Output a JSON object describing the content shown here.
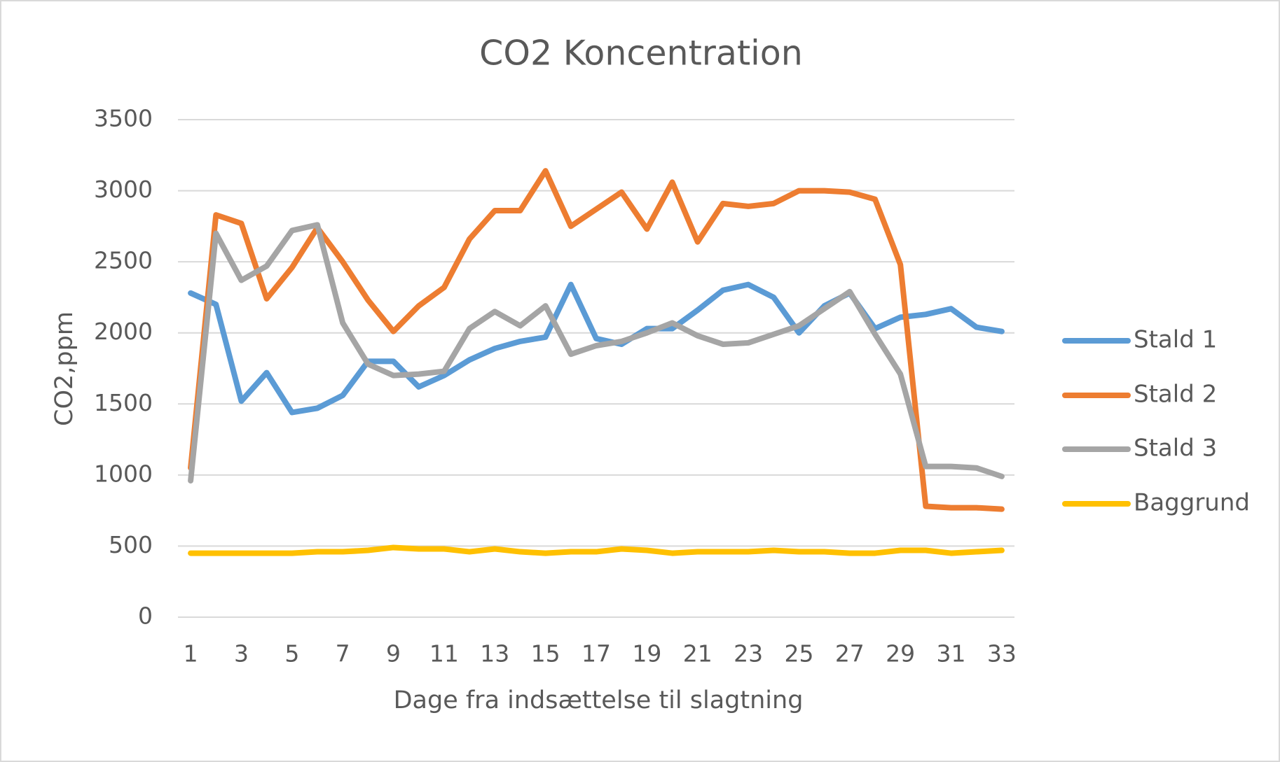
{
  "chart_data": {
    "type": "line",
    "title": "CO2 Koncentration",
    "x_label": "Dage fra indsættelse til slagtning",
    "y_label": "CO2,ppm",
    "categories": [
      1,
      null,
      3,
      null,
      5,
      null,
      7,
      null,
      9,
      null,
      11,
      null,
      13,
      null,
      15,
      null,
      17,
      null,
      19,
      null,
      21,
      null,
      23,
      null,
      25,
      null,
      27,
      null,
      29,
      null,
      31,
      null,
      33
    ],
    "series": [
      {
        "name": "Stald 1",
        "color": "#5b9bd5",
        "values": [
          2280,
          2200,
          1520,
          1720,
          1440,
          1470,
          1560,
          1800,
          1800,
          1620,
          1700,
          1810,
          1890,
          1940,
          1970,
          2340,
          1960,
          1920,
          2030,
          2030,
          2160,
          2300,
          2340,
          2250,
          2000,
          2190,
          2280,
          2030,
          2110,
          2130,
          2170,
          2040,
          2010
        ]
      },
      {
        "name": "Stald 2",
        "color": "#ed7d31",
        "values": [
          1050,
          2830,
          2770,
          2240,
          2460,
          2740,
          2500,
          2230,
          2010,
          2190,
          2320,
          2660,
          2860,
          2860,
          3140,
          2750,
          2870,
          2990,
          2730,
          3060,
          2640,
          2910,
          2890,
          2910,
          3000,
          3000,
          2990,
          2940,
          2480,
          780,
          770,
          770,
          760
        ]
      },
      {
        "name": "Stald 3",
        "color": "#a5a5a5",
        "values": [
          960,
          2700,
          2370,
          2470,
          2720,
          2760,
          2070,
          1780,
          1700,
          1710,
          1730,
          2030,
          2150,
          2050,
          2190,
          1850,
          1910,
          1940,
          2000,
          2070,
          1980,
          1920,
          1930,
          1990,
          2050,
          2170,
          2290,
          1990,
          1710,
          1060,
          1060,
          1050,
          990
        ]
      },
      {
        "name": "Baggrund",
        "color": "#ffc000",
        "values": [
          450,
          450,
          450,
          450,
          450,
          460,
          460,
          470,
          490,
          480,
          480,
          460,
          480,
          460,
          450,
          460,
          460,
          480,
          470,
          450,
          460,
          460,
          460,
          470,
          460,
          460,
          450,
          450,
          470,
          470,
          450,
          460,
          470
        ]
      }
    ],
    "ylim": [
      0,
      3500
    ],
    "yticks": [
      0,
      500,
      1000,
      1500,
      2000,
      2500,
      3000,
      3500
    ],
    "grid": true,
    "legend": "right"
  }
}
